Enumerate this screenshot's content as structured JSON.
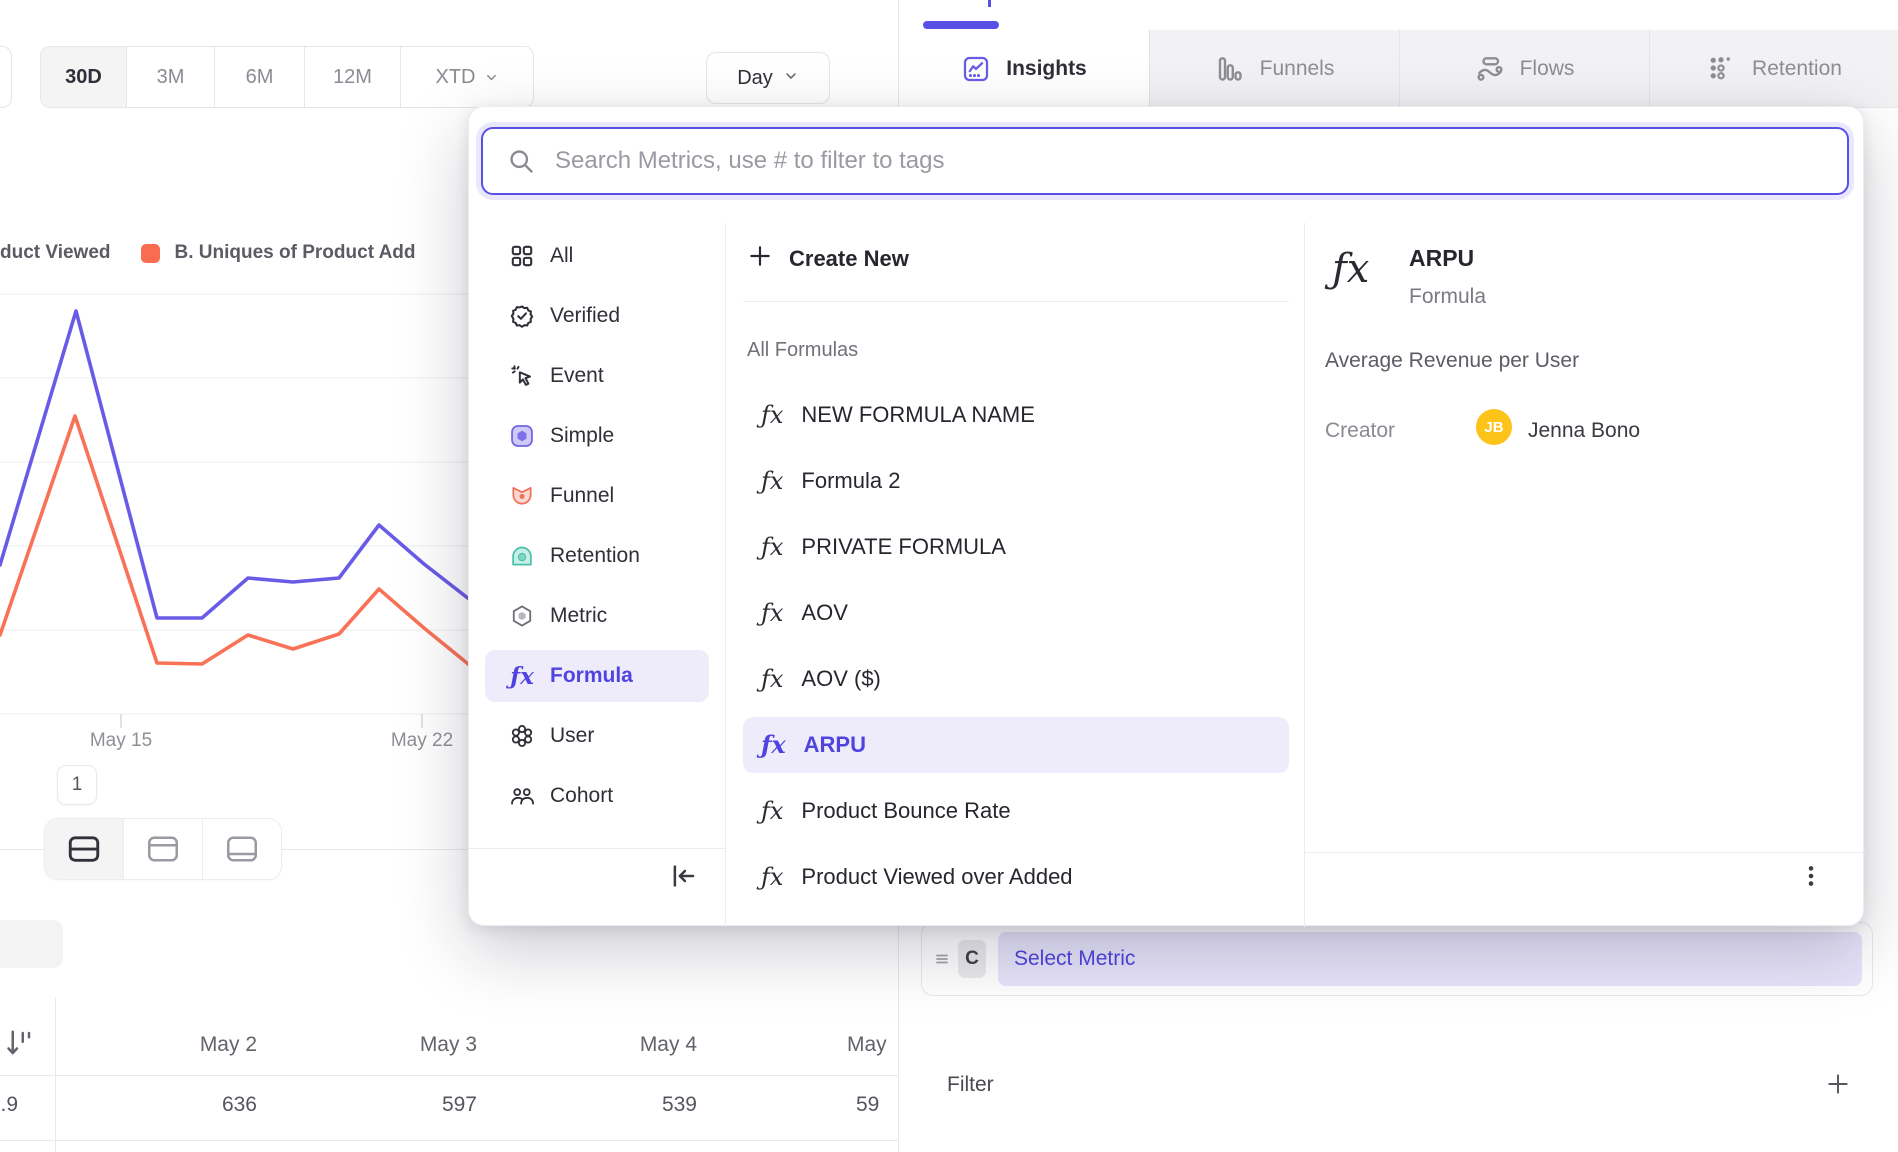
{
  "colors": {
    "accent_purple": "#5a50e5",
    "purple_text": "#4f44e0",
    "purple_light_bg": "#eeecfb",
    "chart_purple": "#6a5be6",
    "chart_coral": "#f97257",
    "legend_coral": "#fa6c4f",
    "avatar_yellow": "#fcc419",
    "tab_inactive_bg": "#f2f2f4"
  },
  "time_range": {
    "options": [
      {
        "label": "30D",
        "selected": true,
        "chevron": false
      },
      {
        "label": "3M",
        "selected": false,
        "chevron": false
      },
      {
        "label": "6M",
        "selected": false,
        "chevron": false
      },
      {
        "label": "12M",
        "selected": false,
        "chevron": false
      },
      {
        "label": "XTD",
        "selected": false,
        "chevron": true
      }
    ]
  },
  "granularity": {
    "label": "Day"
  },
  "tabs": [
    {
      "label": "Insights",
      "icon": "insights-icon",
      "active": true
    },
    {
      "label": "Funnels",
      "icon": "funnels-icon",
      "active": false
    },
    {
      "label": "Flows",
      "icon": "flows-icon",
      "active": false
    },
    {
      "label": "Retention",
      "icon": "retention-grid-icon",
      "active": false
    }
  ],
  "legend": [
    {
      "label": "duct Viewed",
      "swatch": null
    },
    {
      "label": "B. Uniques of Product Add",
      "swatch": "#fa6c4f"
    }
  ],
  "chart": {
    "type": "line",
    "x_ticks": [
      {
        "label": "May 15",
        "x": 121
      },
      {
        "label": "May 22",
        "x": 422
      }
    ],
    "series": [
      {
        "name": "A (purple)",
        "color": "#6a5be6",
        "points": [
          [
            0,
            285
          ],
          [
            76,
            31
          ],
          [
            157,
            338
          ],
          [
            202,
            338
          ],
          [
            248,
            298
          ],
          [
            293,
            302
          ],
          [
            339,
            298
          ],
          [
            379,
            245
          ],
          [
            424,
            284
          ],
          [
            478,
            326
          ]
        ]
      },
      {
        "name": "B (coral)",
        "color": "#f97257",
        "points": [
          [
            0,
            355
          ],
          [
            75,
            136
          ],
          [
            157,
            383
          ],
          [
            202,
            384
          ],
          [
            248,
            355
          ],
          [
            293,
            369
          ],
          [
            339,
            354
          ],
          [
            379,
            309
          ],
          [
            424,
            348
          ],
          [
            478,
            392
          ]
        ]
      }
    ]
  },
  "pagination": {
    "page": "1"
  },
  "table": {
    "columns": [
      "May 2",
      "May 3",
      "May 4",
      "May"
    ],
    "frozen_value": ".9",
    "values": [
      "636",
      "597",
      "539",
      "59"
    ]
  },
  "metric_picker": {
    "search_placeholder": "Search Metrics, use # to filter to tags",
    "categories": [
      {
        "label": "All",
        "icon": "all-icon",
        "selected": false
      },
      {
        "label": "Verified",
        "icon": "verified-icon",
        "selected": false
      },
      {
        "label": "Event",
        "icon": "event-icon",
        "selected": false
      },
      {
        "label": "Simple",
        "icon": "simple-icon",
        "selected": false
      },
      {
        "label": "Funnel",
        "icon": "funnel-icon",
        "selected": false
      },
      {
        "label": "Retention",
        "icon": "retention-icon",
        "selected": false
      },
      {
        "label": "Metric",
        "icon": "metric-icon",
        "selected": false
      },
      {
        "label": "Formula",
        "icon": "formula-icon",
        "selected": true
      },
      {
        "label": "User",
        "icon": "user-icon",
        "selected": false
      },
      {
        "label": "Cohort",
        "icon": "cohort-icon",
        "selected": false
      }
    ],
    "create_new_label": "Create New",
    "section_label": "All Formulas",
    "formulas": [
      {
        "name": "NEW FORMULA NAME",
        "selected": false
      },
      {
        "name": "Formula 2",
        "selected": false
      },
      {
        "name": "PRIVATE FORMULA",
        "selected": false
      },
      {
        "name": "AOV",
        "selected": false
      },
      {
        "name": "AOV ($)",
        "selected": false
      },
      {
        "name": "ARPU",
        "selected": true
      },
      {
        "name": "Product Bounce Rate",
        "selected": false
      },
      {
        "name": "Product Viewed over Added",
        "selected": false
      }
    ],
    "detail": {
      "title": "ARPU",
      "type_label": "Formula",
      "description": "Average Revenue per User",
      "creator_label": "Creator",
      "creator_initials": "JB",
      "creator_name": "Jenna Bono"
    }
  },
  "builder": {
    "row_letter": "C",
    "select_metric_label": "Select Metric",
    "filter_label": "Filter"
  }
}
